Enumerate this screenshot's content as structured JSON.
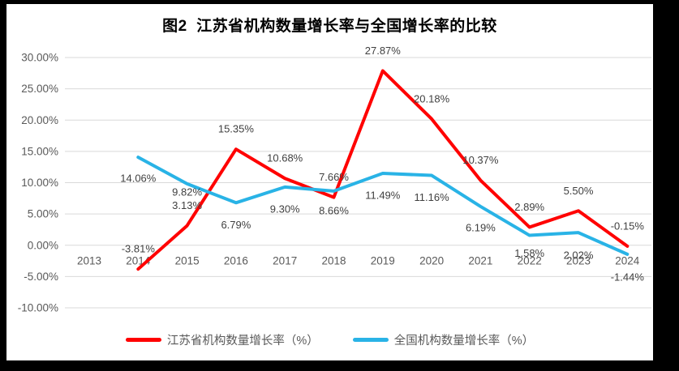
{
  "window": {
    "background_color": "#000000",
    "panel_color": "#FFFFFF"
  },
  "chart_data": {
    "type": "line",
    "title": "图2  江苏省机构数量增长率与全国增长率的比较",
    "categories": [
      "2013",
      "2014",
      "2015",
      "2016",
      "2017",
      "2018",
      "2019",
      "2020",
      "2021",
      "2022",
      "2023",
      "2024"
    ],
    "series": [
      {
        "name": "江苏省机构数量增长率（%）",
        "color": "#FF0000",
        "values": [
          null,
          -3.81,
          3.13,
          15.35,
          10.68,
          7.66,
          27.87,
          20.18,
          10.37,
          2.89,
          5.5,
          -0.15
        ],
        "point_labels": [
          "",
          "-3.81%",
          "3.13%",
          "15.35%",
          "10.68%",
          "7.66%",
          "27.87%",
          "20.18%",
          "10.37%",
          "2.89%",
          "5.50%",
          "-0.15%"
        ],
        "label_dy": [
          null,
          -25,
          -25,
          -25,
          -25,
          -25,
          -25,
          -25,
          -25,
          -25,
          -25,
          -25
        ]
      },
      {
        "name": "全国机构数量增长率（%）",
        "color": "#29B3E6",
        "values": [
          null,
          14.06,
          9.82,
          6.79,
          9.3,
          8.66,
          11.49,
          11.16,
          6.19,
          1.58,
          2.02,
          -1.44
        ],
        "point_labels": [
          "",
          "14.06%",
          "9.82%",
          "6.79%",
          "9.30%",
          "8.66%",
          "11.49%",
          "11.16%",
          "6.19%",
          "1.58%",
          "2.02%",
          "-1.44%"
        ],
        "label_dy": [
          null,
          26,
          10,
          27,
          27,
          24,
          27,
          27,
          26,
          22,
          28,
          28
        ]
      }
    ],
    "ylim": [
      -10,
      30
    ],
    "ytick_values": [
      30,
      25,
      20,
      15,
      10,
      5,
      0,
      -5,
      -10
    ],
    "ytick_labels": [
      "30.00%",
      "25.00%",
      "20.00%",
      "15.00%",
      "10.00%",
      "5.00%",
      "0.00%",
      "-5.00%",
      "-10.00%"
    ],
    "grid": true,
    "grid_color": "#D9D9D9",
    "axis_text_color": "#595959",
    "data_label_color": "#404040",
    "legend_position": "bottom"
  }
}
